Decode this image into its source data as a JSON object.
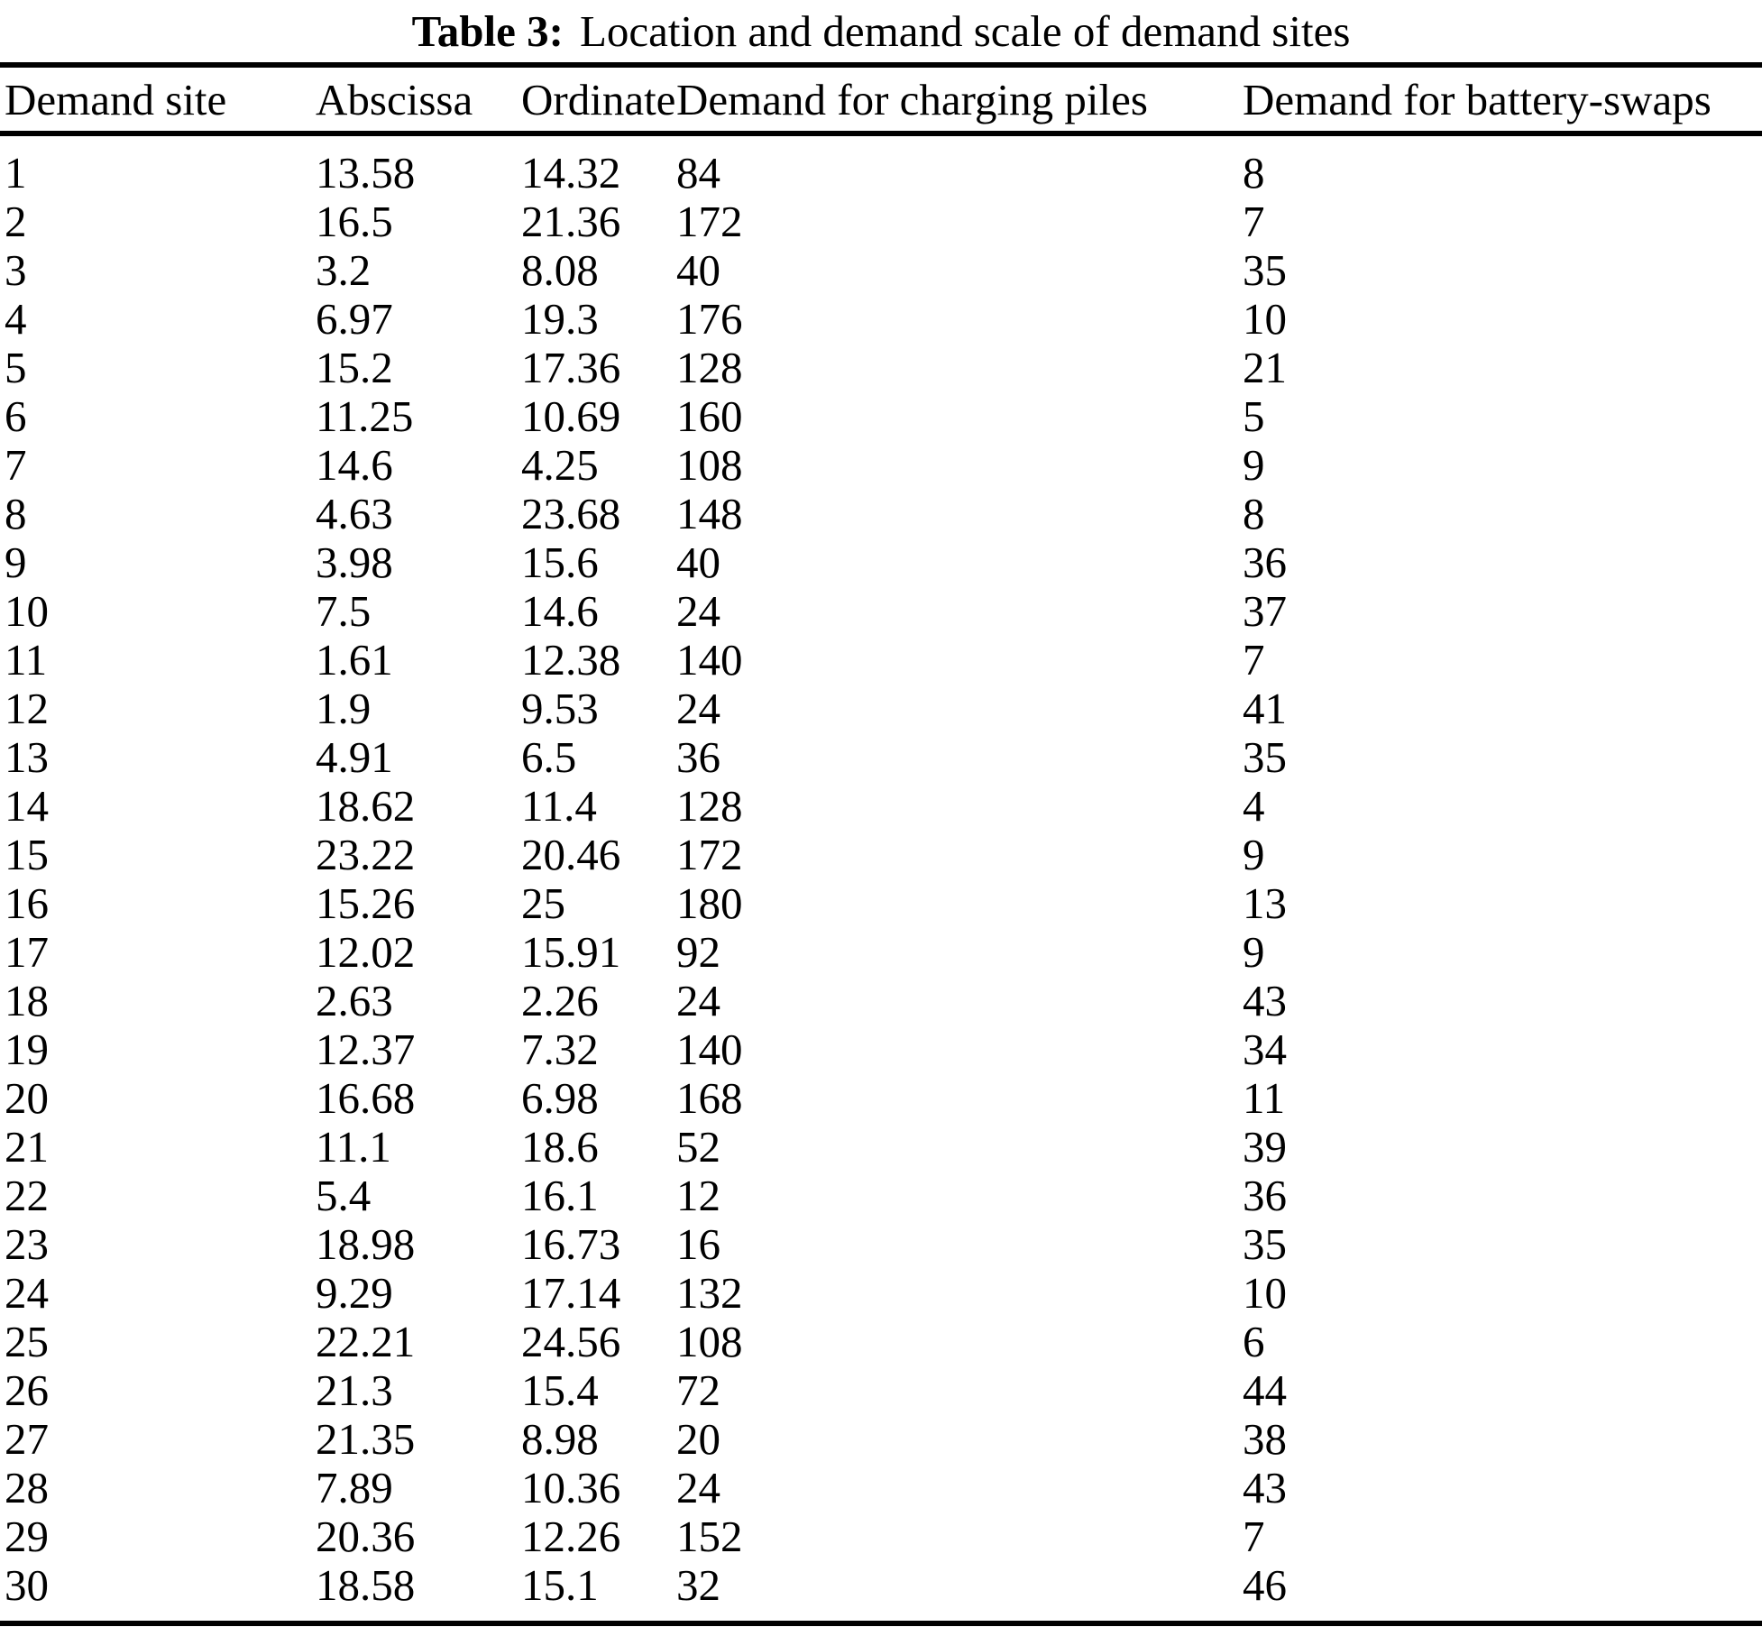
{
  "caption": {
    "label": "Table 3:",
    "text": "Location and demand scale of demand sites"
  },
  "table": {
    "columns": [
      "Demand site",
      "Abscissa",
      "Ordinate",
      "Demand for charging piles",
      "Demand for battery-swaps"
    ],
    "rows": [
      [
        "1",
        "13.58",
        "14.32",
        "84",
        "8"
      ],
      [
        "2",
        "16.5",
        "21.36",
        "172",
        "7"
      ],
      [
        "3",
        "3.2",
        "8.08",
        "40",
        "35"
      ],
      [
        "4",
        "6.97",
        "19.3",
        "176",
        "10"
      ],
      [
        "5",
        "15.2",
        "17.36",
        "128",
        "21"
      ],
      [
        "6",
        "11.25",
        "10.69",
        "160",
        "5"
      ],
      [
        "7",
        "14.6",
        "4.25",
        "108",
        "9"
      ],
      [
        "8",
        "4.63",
        "23.68",
        "148",
        "8"
      ],
      [
        "9",
        "3.98",
        "15.6",
        "40",
        "36"
      ],
      [
        "10",
        "7.5",
        "14.6",
        "24",
        "37"
      ],
      [
        "11",
        "1.61",
        "12.38",
        "140",
        "7"
      ],
      [
        "12",
        "1.9",
        "9.53",
        "24",
        "41"
      ],
      [
        "13",
        "4.91",
        "6.5",
        "36",
        "35"
      ],
      [
        "14",
        "18.62",
        "11.4",
        "128",
        "4"
      ],
      [
        "15",
        "23.22",
        "20.46",
        "172",
        "9"
      ],
      [
        "16",
        "15.26",
        "25",
        "180",
        "13"
      ],
      [
        "17",
        "12.02",
        "15.91",
        "92",
        "9"
      ],
      [
        "18",
        "2.63",
        "2.26",
        "24",
        "43"
      ],
      [
        "19",
        "12.37",
        "7.32",
        "140",
        "34"
      ],
      [
        "20",
        "16.68",
        "6.98",
        "168",
        "11"
      ],
      [
        "21",
        "11.1",
        "18.6",
        "52",
        "39"
      ],
      [
        "22",
        "5.4",
        "16.1",
        "12",
        "36"
      ],
      [
        "23",
        "18.98",
        "16.73",
        "16",
        "35"
      ],
      [
        "24",
        "9.29",
        "17.14",
        "132",
        "10"
      ],
      [
        "25",
        "22.21",
        "24.56",
        "108",
        "6"
      ],
      [
        "26",
        "21.3",
        "15.4",
        "72",
        "44"
      ],
      [
        "27",
        "21.35",
        "8.98",
        "20",
        "38"
      ],
      [
        "28",
        "7.89",
        "10.36",
        "24",
        "43"
      ],
      [
        "29",
        "20.36",
        "12.26",
        "152",
        "7"
      ],
      [
        "30",
        "18.58",
        "15.1",
        "32",
        "46"
      ]
    ]
  },
  "colors": {
    "text": "#000000",
    "background": "#ffffff",
    "rule": "#000000"
  }
}
